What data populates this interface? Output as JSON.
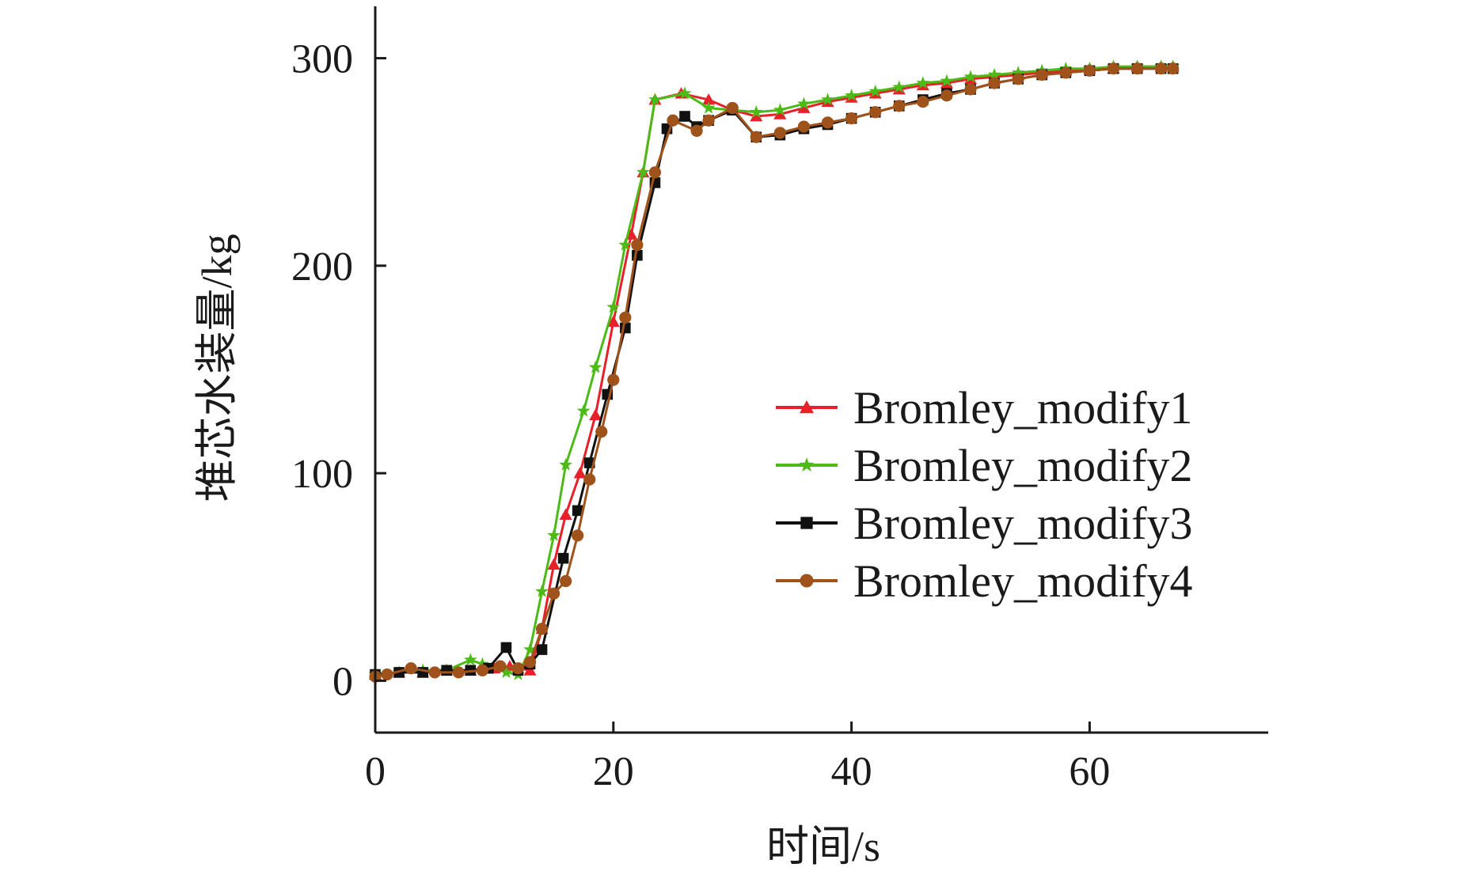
{
  "chart_data": {
    "type": "line",
    "xlabel": "时间/s",
    "ylabel": "堆芯水装量/kg",
    "xlim": [
      0,
      75
    ],
    "ylim": [
      -25,
      325
    ],
    "xticks": [
      0,
      20,
      40,
      60
    ],
    "yticks": [
      0,
      100,
      200,
      300
    ],
    "legend_position": "center-right",
    "grid": false,
    "series": [
      {
        "name": "Bromley_modify1",
        "color": "#e8202a",
        "marker": "triangle",
        "points": [
          [
            0,
            3
          ],
          [
            2,
            4
          ],
          [
            4,
            4
          ],
          [
            6,
            5
          ],
          [
            8,
            5
          ],
          [
            10,
            6
          ],
          [
            11.3,
            7
          ],
          [
            13,
            5
          ],
          [
            14,
            25
          ],
          [
            15,
            56
          ],
          [
            16,
            80
          ],
          [
            17.2,
            100
          ],
          [
            18.5,
            128
          ],
          [
            20,
            173
          ],
          [
            21.5,
            215
          ],
          [
            22.5,
            245
          ],
          [
            23.5,
            280
          ],
          [
            25.7,
            283
          ],
          [
            28,
            280
          ],
          [
            30,
            275
          ],
          [
            32,
            272
          ],
          [
            34,
            273
          ],
          [
            36,
            276
          ],
          [
            38,
            279
          ],
          [
            40,
            281
          ],
          [
            42,
            283
          ],
          [
            44,
            285
          ],
          [
            46,
            287
          ],
          [
            48,
            288
          ],
          [
            50,
            290
          ],
          [
            52,
            291
          ],
          [
            54,
            292
          ],
          [
            56,
            293
          ],
          [
            58,
            294
          ],
          [
            60,
            295
          ],
          [
            62,
            295
          ],
          [
            64,
            296
          ],
          [
            66,
            296
          ],
          [
            67,
            296
          ]
        ]
      },
      {
        "name": "Bromley_modify2",
        "color": "#4cbb17",
        "marker": "star",
        "points": [
          [
            0,
            3
          ],
          [
            2,
            4
          ],
          [
            4,
            5
          ],
          [
            6,
            5
          ],
          [
            8,
            10
          ],
          [
            9,
            8
          ],
          [
            11,
            4
          ],
          [
            12,
            3
          ],
          [
            13,
            15
          ],
          [
            14,
            43
          ],
          [
            15,
            70
          ],
          [
            16,
            104
          ],
          [
            17.5,
            130
          ],
          [
            18.5,
            151
          ],
          [
            20,
            180
          ],
          [
            21,
            210
          ],
          [
            22.5,
            245
          ],
          [
            23.5,
            280
          ],
          [
            26,
            283
          ],
          [
            28,
            276
          ],
          [
            30,
            275
          ],
          [
            32,
            274
          ],
          [
            34,
            275
          ],
          [
            36,
            278
          ],
          [
            38,
            280
          ],
          [
            40,
            282
          ],
          [
            42,
            284
          ],
          [
            44,
            286
          ],
          [
            46,
            288
          ],
          [
            48,
            289
          ],
          [
            50,
            291
          ],
          [
            52,
            292
          ],
          [
            54,
            293
          ],
          [
            56,
            294
          ],
          [
            58,
            295
          ],
          [
            60,
            295
          ],
          [
            62,
            296
          ],
          [
            64,
            296
          ],
          [
            66,
            296
          ],
          [
            67,
            296
          ]
        ]
      },
      {
        "name": "Bromley_modify3",
        "color": "#111111",
        "marker": "square",
        "points": [
          [
            0,
            3
          ],
          [
            2,
            4
          ],
          [
            4,
            4
          ],
          [
            6,
            5
          ],
          [
            8,
            5
          ],
          [
            9.5,
            6
          ],
          [
            11,
            16
          ],
          [
            12,
            5
          ],
          [
            13,
            8
          ],
          [
            14,
            15
          ],
          [
            15.8,
            59
          ],
          [
            17,
            82
          ],
          [
            18,
            105
          ],
          [
            19.5,
            138
          ],
          [
            21,
            170
          ],
          [
            22,
            205
          ],
          [
            23.5,
            240
          ],
          [
            24.5,
            266
          ],
          [
            26,
            272
          ],
          [
            27,
            267
          ],
          [
            28,
            270
          ],
          [
            30,
            275
          ],
          [
            32,
            262
          ],
          [
            34,
            263
          ],
          [
            36,
            266
          ],
          [
            38,
            268
          ],
          [
            40,
            271
          ],
          [
            42,
            274
          ],
          [
            44,
            277
          ],
          [
            46,
            280
          ],
          [
            48,
            283
          ],
          [
            50,
            285
          ],
          [
            52,
            288
          ],
          [
            54,
            290
          ],
          [
            56,
            292
          ],
          [
            58,
            293
          ],
          [
            60,
            294
          ],
          [
            62,
            295
          ],
          [
            64,
            295
          ],
          [
            66,
            295
          ],
          [
            67,
            295
          ]
        ]
      },
      {
        "name": "Bromley_modify4",
        "color": "#a0521b",
        "marker": "circle",
        "points": [
          [
            0,
            2
          ],
          [
            1,
            3
          ],
          [
            3,
            6
          ],
          [
            5,
            4
          ],
          [
            7,
            4
          ],
          [
            9,
            5
          ],
          [
            10.5,
            7
          ],
          [
            12,
            6
          ],
          [
            13,
            9
          ],
          [
            14,
            25
          ],
          [
            15,
            42
          ],
          [
            16,
            48
          ],
          [
            17,
            70
          ],
          [
            18,
            97
          ],
          [
            19,
            120
          ],
          [
            20,
            145
          ],
          [
            21,
            175
          ],
          [
            22,
            210
          ],
          [
            23.5,
            245
          ],
          [
            25,
            270
          ],
          [
            27,
            265
          ],
          [
            28,
            270
          ],
          [
            30,
            276
          ],
          [
            32,
            262
          ],
          [
            34,
            264
          ],
          [
            36,
            267
          ],
          [
            38,
            269
          ],
          [
            40,
            271
          ],
          [
            42,
            274
          ],
          [
            44,
            277
          ],
          [
            46,
            279
          ],
          [
            48,
            282
          ],
          [
            50,
            285
          ],
          [
            52,
            288
          ],
          [
            54,
            290
          ],
          [
            56,
            292
          ],
          [
            58,
            293
          ],
          [
            60,
            294
          ],
          [
            62,
            295
          ],
          [
            64,
            295
          ],
          [
            66,
            295
          ],
          [
            67,
            295
          ]
        ]
      }
    ]
  }
}
